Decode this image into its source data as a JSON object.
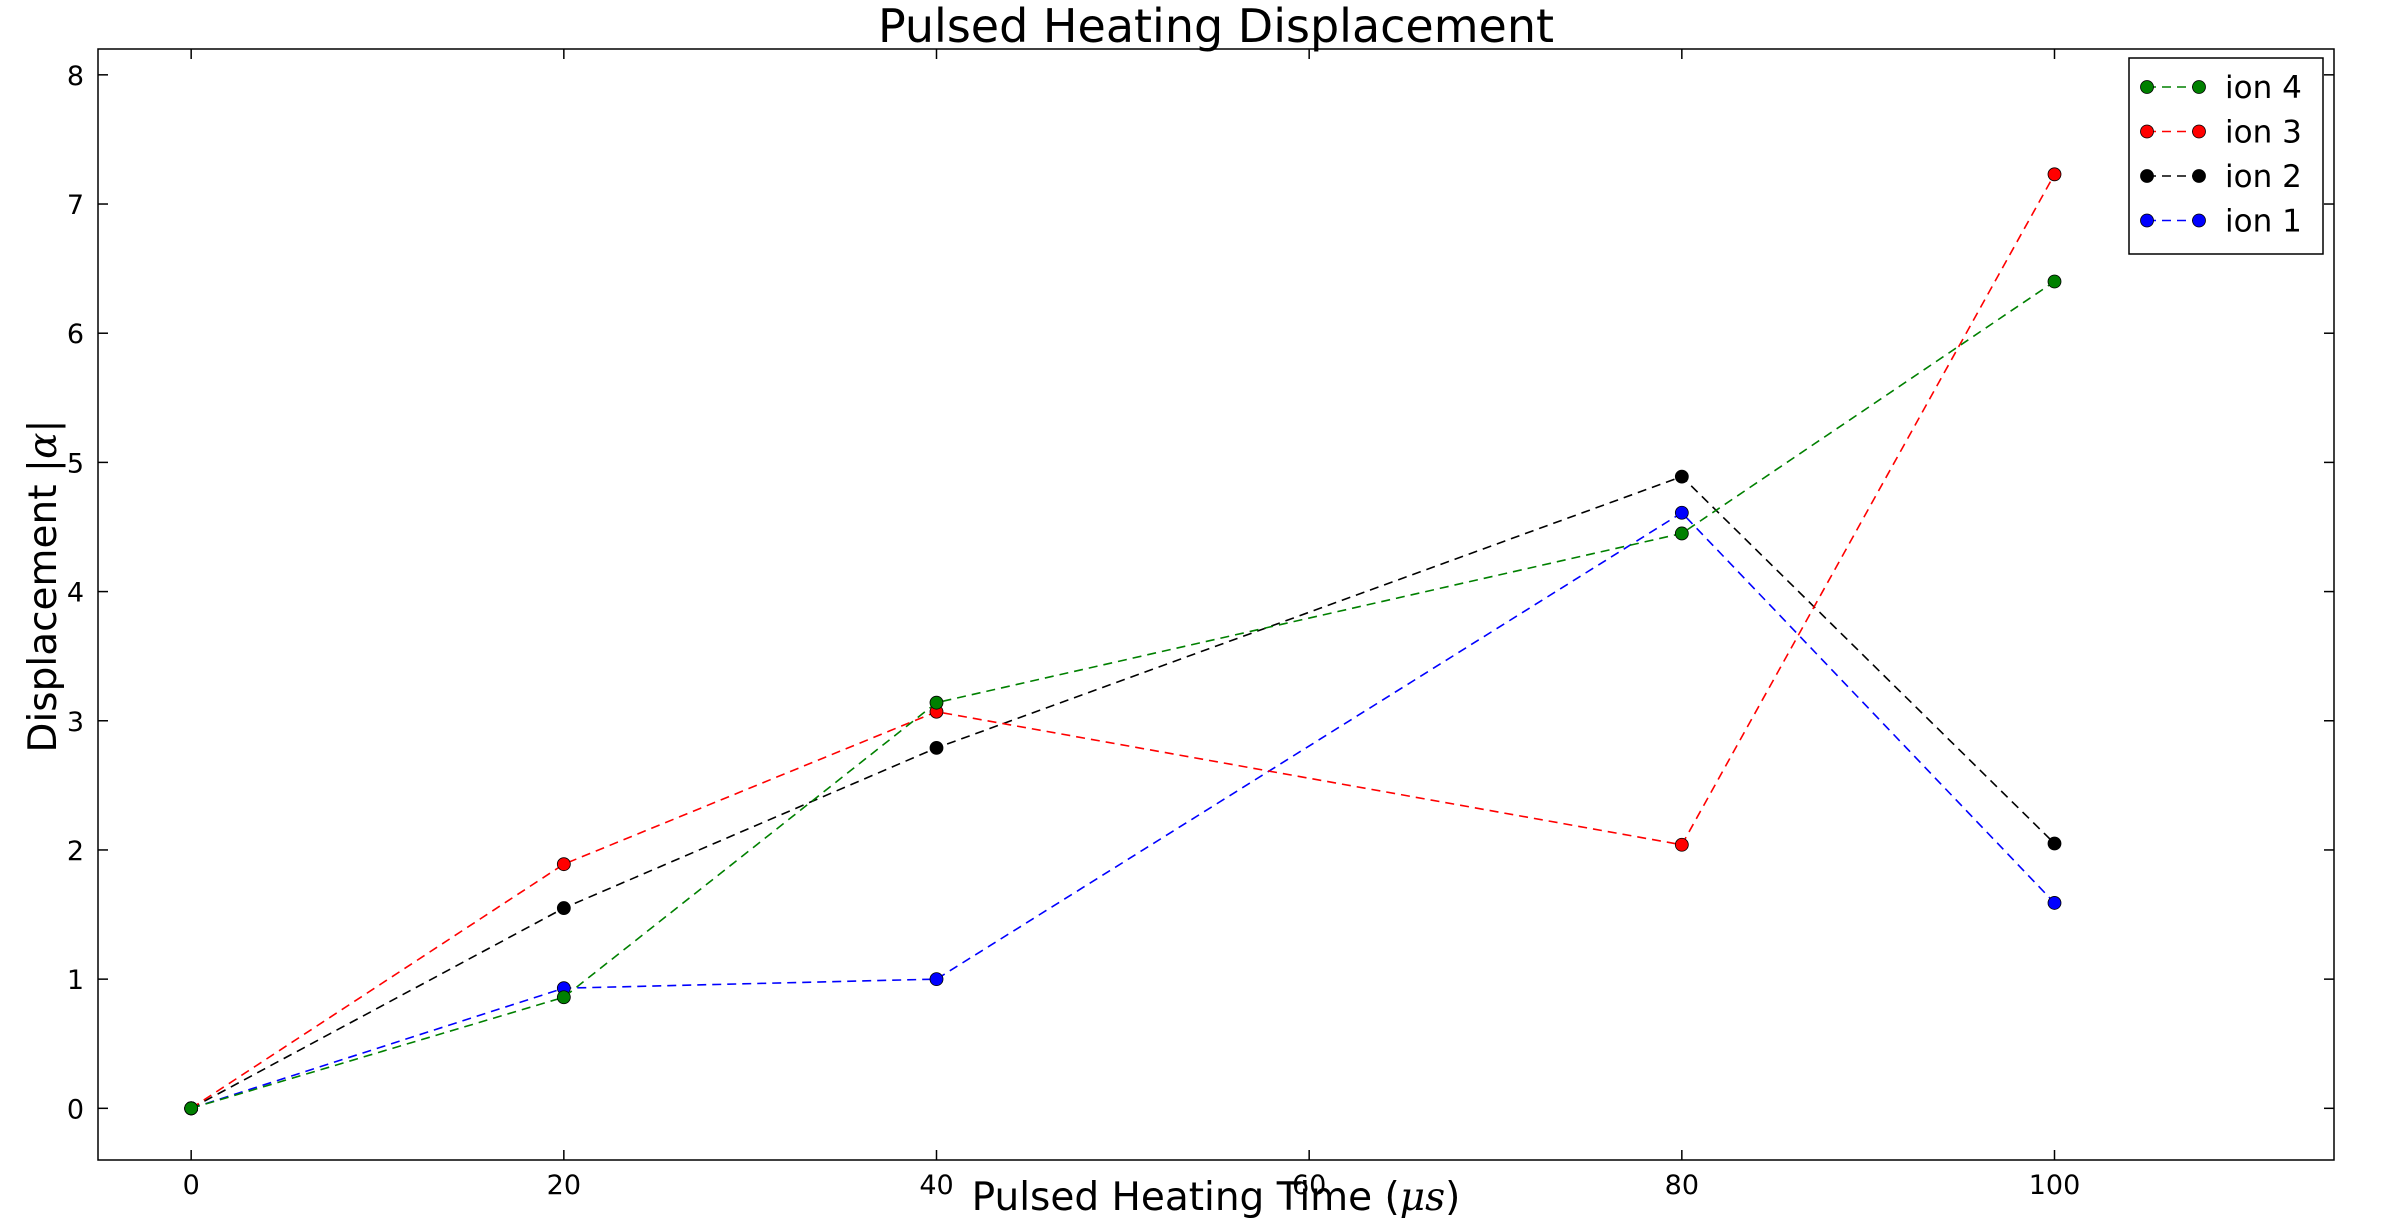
{
  "chart_data": {
    "type": "line",
    "title": "Pulsed Heating Displacement",
    "xlabel_prefix": "Pulsed Heating Time (",
    "xlabel_math": "μs",
    "xlabel_suffix": ")",
    "ylabel_prefix": "Displacement ",
    "ylabel_math": "|α|",
    "xlim": [
      -5,
      115
    ],
    "ylim": [
      -0.4,
      8.2
    ],
    "xticks": [
      0,
      20,
      40,
      60,
      80,
      100
    ],
    "yticks": [
      0,
      1,
      2,
      3,
      4,
      5,
      6,
      7,
      8
    ],
    "grid": false,
    "legend_position": "top-right",
    "x": [
      0,
      20,
      40,
      80,
      100
    ],
    "series": [
      {
        "name": "ion 4",
        "color": "#008000",
        "values": [
          0,
          0.86,
          3.14,
          4.45,
          6.4
        ]
      },
      {
        "name": "ion 3",
        "color": "#ff0000",
        "values": [
          0,
          1.89,
          3.07,
          2.04,
          7.23
        ]
      },
      {
        "name": "ion 2",
        "color": "#000000",
        "values": [
          0,
          1.55,
          2.79,
          4.89,
          2.05
        ]
      },
      {
        "name": "ion 1",
        "color": "#0000ff",
        "values": [
          0,
          0.93,
          1.0,
          4.61,
          1.59
        ]
      }
    ]
  }
}
